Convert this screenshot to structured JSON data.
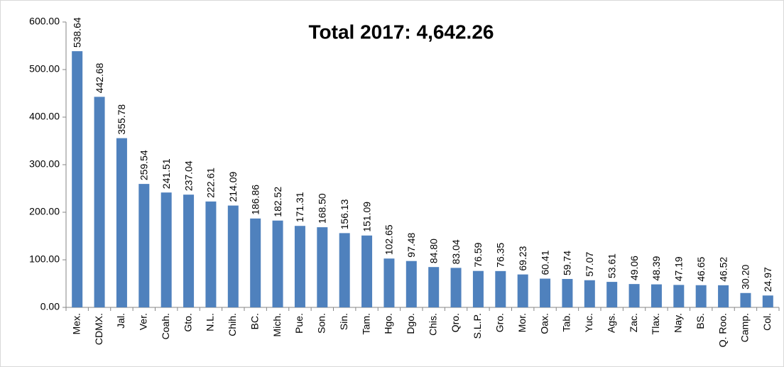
{
  "chart_data": {
    "type": "bar",
    "title": "Total 2017: 4,642.26",
    "categories": [
      "Mex.",
      "CDMX.",
      "Jal.",
      "Ver.",
      "Coah.",
      "Gto.",
      "N.L.",
      "Chih.",
      "BC.",
      "Mich.",
      "Pue.",
      "Son.",
      "Sin.",
      "Tam.",
      "Hgo.",
      "Dgo.",
      "Chis.",
      "Qro.",
      "S.L.P.",
      "Gro.",
      "Mor.",
      "Oax.",
      "Tab.",
      "Yuc.",
      "Ags.",
      "Zac.",
      "Tlax.",
      "Nay.",
      "BS.",
      "Q. Roo.",
      "Camp.",
      "Col."
    ],
    "values": [
      538.64,
      442.68,
      355.78,
      259.54,
      241.51,
      237.04,
      222.61,
      214.09,
      186.86,
      182.52,
      171.31,
      168.5,
      156.13,
      151.09,
      102.65,
      97.48,
      84.8,
      83.04,
      76.59,
      76.35,
      69.23,
      60.41,
      59.74,
      57.07,
      53.61,
      49.06,
      48.39,
      47.19,
      46.65,
      46.52,
      30.2,
      24.97
    ],
    "value_labels": [
      "538.64",
      "442.68",
      "355.78",
      "259.54",
      "241.51",
      "237.04",
      "222.61",
      "214.09",
      "186.86",
      "182.52",
      "171.31",
      "168.50",
      "156.13",
      "151.09",
      "102.65",
      "97.48",
      "84.80",
      "83.04",
      "76.59",
      "76.35",
      "69.23",
      "60.41",
      "59.74",
      "57.07",
      "53.61",
      "49.06",
      "48.39",
      "47.19",
      "46.65",
      "46.52",
      "30.20",
      "24.97"
    ],
    "color": "#4f81bd",
    "ylim": [
      0,
      600
    ],
    "yticks": [
      {
        "value": 0,
        "label": "0.00"
      },
      {
        "value": 100,
        "label": "100.00"
      },
      {
        "value": 200,
        "label": "200.00"
      },
      {
        "value": 300,
        "label": "300.00"
      },
      {
        "value": 400,
        "label": "400.00"
      },
      {
        "value": 500,
        "label": "500.00"
      },
      {
        "value": 600,
        "label": "600.00"
      }
    ],
    "grid": false
  }
}
